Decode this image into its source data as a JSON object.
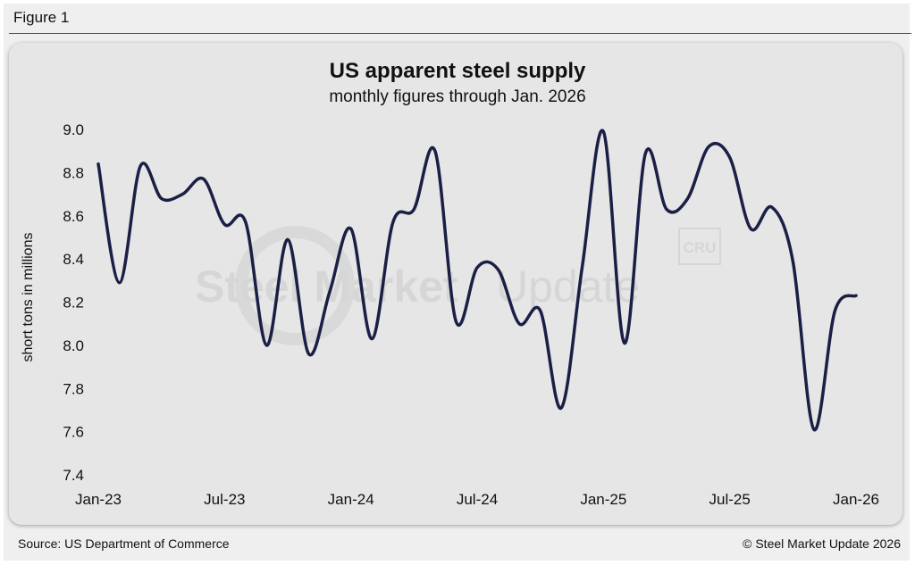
{
  "figure_label": "Figure 1",
  "source": "Source: US Department of Commerce",
  "copyright": "© Steel Market Update 2026",
  "watermark": {
    "text_bold": "Steel Market",
    "text_light": "Update",
    "badge": "CRU"
  },
  "colors": {
    "line": "#1b1f45",
    "panel": "#e6e6e6",
    "outer": "#efefef"
  },
  "chart_data": {
    "type": "line",
    "title": "US apparent steel supply",
    "subtitle": "monthly figures through Jan. 2026",
    "ylabel": "short tons in millions",
    "xlabel": "",
    "ylim": [
      7.4,
      9.0
    ],
    "yticks": [
      "7.4",
      "7.6",
      "7.8",
      "8.0",
      "8.2",
      "8.4",
      "8.6",
      "8.8",
      "9.0"
    ],
    "x_tick_labels": [
      "Jan-23",
      "Jul-23",
      "Jan-24",
      "Jul-24",
      "Jan-25",
      "Jul-25",
      "Jan-26"
    ],
    "grid": false,
    "legend": "none",
    "x": [
      "Jan-23",
      "Feb-23",
      "Mar-23",
      "Apr-23",
      "May-23",
      "Jun-23",
      "Jul-23",
      "Aug-23",
      "Sep-23",
      "Oct-23",
      "Nov-23",
      "Dec-23",
      "Jan-24",
      "Feb-24",
      "Mar-24",
      "Apr-24",
      "May-24",
      "Jun-24",
      "Jul-24",
      "Aug-24",
      "Sep-24",
      "Oct-24",
      "Nov-24",
      "Dec-24",
      "Jan-25",
      "Feb-25",
      "Mar-25",
      "Apr-25",
      "May-25",
      "Jun-25",
      "Jul-25",
      "Aug-25",
      "Sep-25",
      "Oct-25",
      "Nov-25",
      "Dec-25",
      "Jan-26"
    ],
    "series": [
      {
        "values": [
          8.84,
          8.29,
          8.83,
          8.68,
          8.7,
          8.77,
          8.56,
          8.57,
          8.0,
          8.49,
          7.96,
          8.25,
          8.54,
          8.03,
          8.57,
          8.63,
          8.9,
          8.11,
          8.36,
          8.35,
          8.1,
          8.16,
          7.71,
          8.37,
          8.99,
          8.01,
          8.89,
          8.63,
          8.68,
          8.92,
          8.87,
          8.54,
          8.64,
          8.39,
          7.61,
          8.16,
          8.23
        ]
      }
    ]
  }
}
